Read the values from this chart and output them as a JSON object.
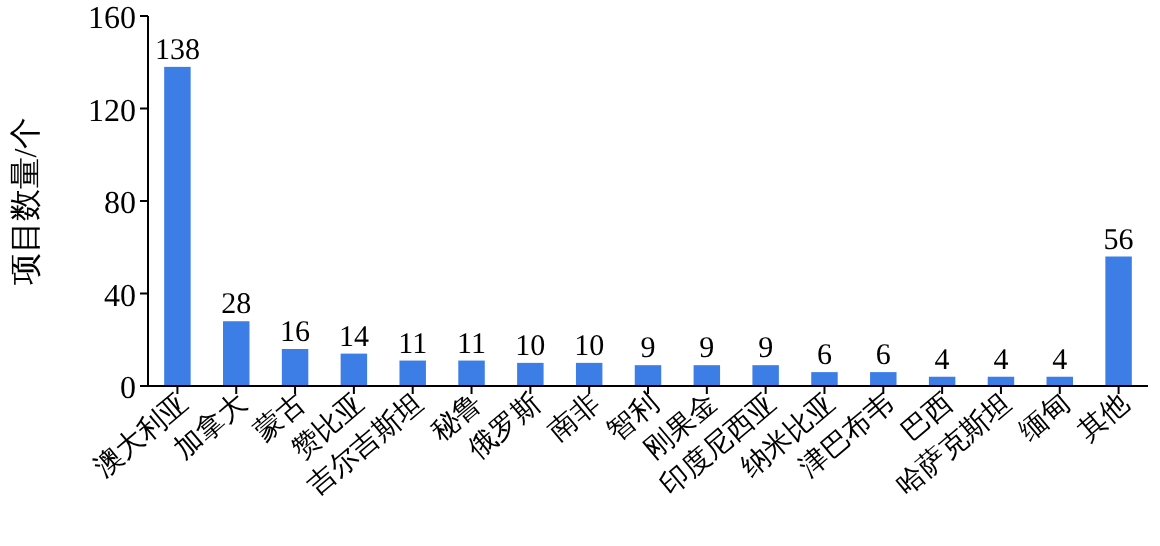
{
  "chart_data": {
    "type": "bar",
    "ylabel": "项目数量/个",
    "categories": [
      "澳大利亚",
      "加拿大",
      "蒙古",
      "赞比亚",
      "吉尔吉斯坦",
      "秘鲁",
      "俄罗斯",
      "南非",
      "智利",
      "刚果金",
      "印度尼西亚",
      "纳米比亚",
      "津巴布韦",
      "巴西",
      "哈萨克斯坦",
      "缅甸",
      "其他"
    ],
    "values": [
      138,
      28,
      16,
      14,
      11,
      11,
      10,
      10,
      9,
      9,
      9,
      6,
      6,
      4,
      4,
      4,
      56
    ],
    "color": "#3d7ee6",
    "ylim": [
      0,
      160
    ],
    "yticks": [
      0,
      40,
      80,
      120,
      160
    ],
    "data_labels": true,
    "grid": false
  }
}
